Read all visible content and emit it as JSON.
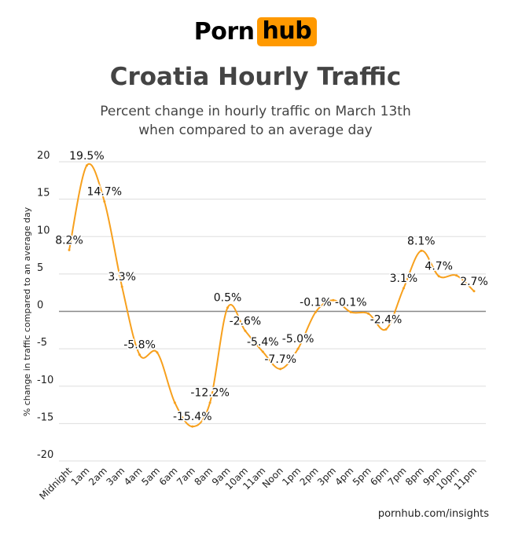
{
  "logo": {
    "part1": "Porn",
    "part2": "hub"
  },
  "title": "Croatia Hourly Traffic",
  "subtitle": [
    "Percent change in hourly traffic on March 13th",
    "when compared to an average day"
  ],
  "footer": "pornhub.com/insights",
  "colors": {
    "line": "#f7a01d",
    "brand": "#ff9900",
    "grid": "#dddddd",
    "zero": "#888888"
  },
  "chart_data": {
    "type": "line",
    "categories": [
      "Midnight",
      "1am",
      "2am",
      "3am",
      "4am",
      "5am",
      "6am",
      "7am",
      "8am",
      "9am",
      "10am",
      "11am",
      "Noon",
      "1pm",
      "2pm",
      "3pm",
      "4pm",
      "5pm",
      "6pm",
      "7pm",
      "8pm",
      "9pm",
      "10pm",
      "11pm"
    ],
    "values": [
      8.2,
      19.5,
      14.7,
      3.3,
      -5.8,
      -5.5,
      -12.2,
      -15.4,
      -12.2,
      0.5,
      -2.6,
      -5.4,
      -7.7,
      -5.0,
      -0.1,
      1.5,
      -0.1,
      -0.3,
      -2.4,
      3.1,
      8.1,
      4.7,
      4.8,
      2.7
    ],
    "labels": [
      "8.2%",
      "19.5%",
      "14.7%",
      "3.3%",
      "-5.8%",
      "",
      "",
      "-15.4%",
      "-12.2%",
      "0.5%",
      "-2.6%",
      "-5.4%",
      "-7.7%",
      "-5.0%",
      "-0.1%",
      "",
      "-0.1%",
      "",
      "-2.4%",
      "3.1%",
      "8.1%",
      "4.7%",
      "",
      "2.7%"
    ],
    "ylabel": "% change in traffic compared to an average day",
    "xlabel": "",
    "ylim": [
      -20,
      20
    ],
    "yticks": [
      "20",
      "15",
      "10",
      "5",
      "0",
      "-5",
      "-10",
      "-15",
      "-20"
    ],
    "grid": true,
    "legend": "none"
  }
}
